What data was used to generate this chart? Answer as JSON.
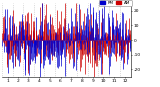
{
  "background_color": "#ffffff",
  "bar_color_red": "#cc0000",
  "bar_color_blue": "#0000cc",
  "legend_label_blue": "PM",
  "legend_label_red": "AM",
  "n_points": 365,
  "seed": 42,
  "ylim": [
    -25,
    25
  ],
  "yticks": [
    -20,
    -10,
    0,
    10,
    20
  ],
  "ytick_labels": [
    "-20",
    "-10",
    "0",
    "10",
    "20"
  ],
  "grid_color": "#bbbbbb",
  "tick_fontsize": 3.2,
  "month_starts": [
    0,
    31,
    59,
    90,
    120,
    151,
    181,
    212,
    243,
    273,
    304,
    334
  ],
  "month_mids": [
    15,
    46,
    74,
    105,
    135,
    166,
    196,
    227,
    258,
    288,
    319,
    349
  ],
  "month_labels": [
    "1",
    "2",
    "3",
    "4",
    "5",
    "6",
    "7",
    "8",
    "9",
    "10",
    "11",
    "12"
  ]
}
